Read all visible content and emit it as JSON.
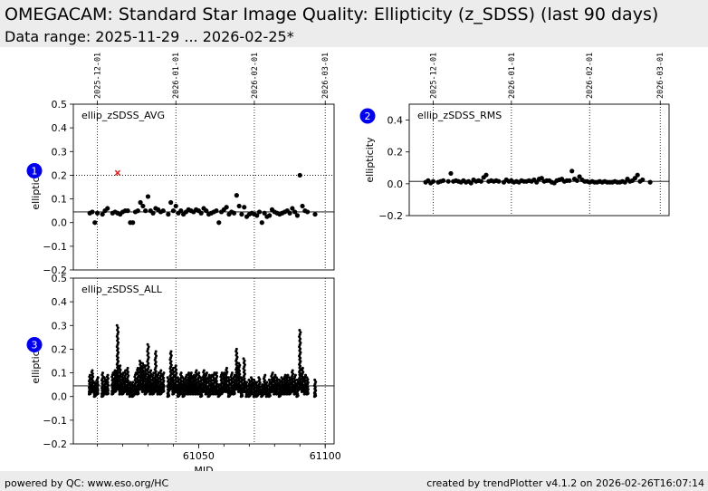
{
  "header": {
    "title": "OMEGACAM: Standard Star Image Quality: Ellipticity (z_SDSS) (last 90 days)",
    "subtitle": "Data range: 2025-11-29 ... 2026-02-25*"
  },
  "footer": {
    "left": "powered by QC: www.eso.org/HC",
    "right": "created by trendPlotter v4.1.2 on 2026-02-26T16:07:14"
  },
  "colors": {
    "marker": "#000000",
    "outlier": "#dd2222",
    "badge": "#0000ee",
    "header_bg": "#ececec"
  },
  "chart_data": [
    {
      "id": "avg",
      "type": "scatter",
      "badge": "1",
      "label": "ellip_zSDSS_AVG",
      "ylabel": "ellipticity",
      "xlim": [
        61000.5,
        61103.5
      ],
      "ylim": [
        -0.2,
        0.5
      ],
      "yticks": [
        -0.2,
        -0.1,
        0.0,
        0.1,
        0.2,
        0.3,
        0.4,
        0.5
      ],
      "yticklabels": [
        "−0.2",
        "−0.1",
        "0.0",
        "0.1",
        "0.2",
        "0.3",
        "0.4",
        "0.5"
      ],
      "date_ticks": [
        {
          "mjd": 61010,
          "label": "2025-12-01"
        },
        {
          "mjd": 61041,
          "label": "2026-01-01"
        },
        {
          "mjd": 61072,
          "label": "2026-02-01"
        },
        {
          "mjd": 61100,
          "label": "2026-03-01"
        }
      ],
      "reference_lines": [
        0.045
      ],
      "threshold": 0.2,
      "outliers": [
        {
          "x": 61018,
          "y": 0.21
        }
      ],
      "x": [
        61007,
        61008,
        61009,
        61010,
        61012,
        61013,
        61014,
        61016,
        61017,
        61018,
        61019,
        61020,
        61021,
        61022,
        61023,
        61024,
        61025,
        61026,
        61027,
        61028,
        61029,
        61030,
        61031,
        61032,
        61033,
        61034,
        61035,
        61036,
        61038,
        61039,
        61040,
        61041,
        61042,
        61043,
        61044,
        61045,
        61046,
        61047,
        61048,
        61049,
        61050,
        61051,
        61052,
        61053,
        61054,
        61055,
        61056,
        61057,
        61058,
        61059,
        61060,
        61061,
        61062,
        61063,
        61064,
        61065,
        61066,
        61067,
        61068,
        61069,
        61070,
        61071,
        61072,
        61073,
        61074,
        61075,
        61076,
        61077,
        61078,
        61079,
        61080,
        61081,
        61082,
        61083,
        61084,
        61085,
        61086,
        61087,
        61088,
        61089,
        61090,
        61091,
        61092,
        61093,
        61096
      ],
      "values": [
        0.04,
        0.045,
        0.0,
        0.04,
        0.035,
        0.05,
        0.06,
        0.04,
        0.045,
        0.04,
        0.035,
        0.045,
        0.05,
        0.05,
        0.0,
        0.0,
        0.045,
        0.05,
        0.085,
        0.07,
        0.05,
        0.11,
        0.05,
        0.04,
        0.06,
        0.055,
        0.045,
        0.05,
        0.035,
        0.085,
        0.05,
        0.07,
        0.04,
        0.05,
        0.035,
        0.045,
        0.055,
        0.05,
        0.045,
        0.055,
        0.05,
        0.04,
        0.06,
        0.05,
        0.035,
        0.04,
        0.045,
        0.05,
        0.0,
        0.045,
        0.055,
        0.065,
        0.035,
        0.045,
        0.04,
        0.115,
        0.07,
        0.035,
        0.065,
        0.025,
        0.035,
        0.04,
        0.035,
        0.03,
        0.045,
        0.0,
        0.04,
        0.025,
        0.03,
        0.055,
        0.045,
        0.04,
        0.035,
        0.04,
        0.045,
        0.05,
        0.04,
        0.06,
        0.045,
        0.03,
        0.2,
        0.07,
        0.05,
        0.045,
        0.035
      ]
    },
    {
      "id": "rms",
      "type": "scatter",
      "badge": "2",
      "label": "ellip_zSDSS_RMS",
      "ylabel": "ellipticity",
      "xlim": [
        61000.5,
        61103.5
      ],
      "ylim": [
        -0.2,
        0.5
      ],
      "yticks": [
        -0.2,
        0.0,
        0.2,
        0.4
      ],
      "yticklabels": [
        "−0.2",
        "0.0",
        "0.2",
        "0.4"
      ],
      "date_ticks": [
        {
          "mjd": 61010,
          "label": "2025-12-01"
        },
        {
          "mjd": 61041,
          "label": "2026-01-01"
        },
        {
          "mjd": 61072,
          "label": "2026-02-01"
        },
        {
          "mjd": 61100,
          "label": "2026-03-01"
        }
      ],
      "reference_lines": [
        0.015
      ],
      "x": [
        61007,
        61008,
        61009,
        61010,
        61012,
        61013,
        61014,
        61016,
        61017,
        61018,
        61019,
        61020,
        61021,
        61022,
        61023,
        61024,
        61025,
        61026,
        61027,
        61028,
        61029,
        61030,
        61031,
        61032,
        61033,
        61034,
        61035,
        61036,
        61038,
        61039,
        61040,
        61041,
        61042,
        61043,
        61044,
        61045,
        61046,
        61047,
        61048,
        61049,
        61050,
        61051,
        61052,
        61053,
        61054,
        61055,
        61056,
        61057,
        61058,
        61059,
        61060,
        61061,
        61062,
        61063,
        61064,
        61065,
        61066,
        61067,
        61068,
        61069,
        61070,
        61071,
        61072,
        61073,
        61074,
        61075,
        61076,
        61077,
        61078,
        61079,
        61080,
        61081,
        61082,
        61083,
        61084,
        61085,
        61086,
        61087,
        61088,
        61089,
        61090,
        61091,
        61092,
        61093,
        61096
      ],
      "values": [
        0.01,
        0.02,
        0.005,
        0.015,
        0.01,
        0.015,
        0.02,
        0.015,
        0.065,
        0.015,
        0.02,
        0.015,
        0.01,
        0.02,
        0.01,
        0.015,
        0.005,
        0.025,
        0.015,
        0.02,
        0.015,
        0.04,
        0.055,
        0.015,
        0.02,
        0.015,
        0.02,
        0.015,
        0.01,
        0.025,
        0.015,
        0.02,
        0.01,
        0.015,
        0.01,
        0.02,
        0.015,
        0.015,
        0.02,
        0.015,
        0.025,
        0.01,
        0.03,
        0.035,
        0.015,
        0.02,
        0.02,
        0.01,
        0.005,
        0.02,
        0.025,
        0.03,
        0.015,
        0.02,
        0.02,
        0.08,
        0.03,
        0.02,
        0.045,
        0.025,
        0.015,
        0.015,
        0.01,
        0.015,
        0.01,
        0.01,
        0.015,
        0.01,
        0.015,
        0.01,
        0.01,
        0.01,
        0.015,
        0.01,
        0.01,
        0.015,
        0.01,
        0.03,
        0.015,
        0.02,
        0.035,
        0.055,
        0.015,
        0.025,
        0.01
      ]
    },
    {
      "id": "all",
      "type": "scatter",
      "badge": "3",
      "label": "ellip_zSDSS_ALL",
      "ylabel": "ellipticity",
      "xlabel": "MJD",
      "xlim": [
        61000.5,
        61103.5
      ],
      "ylim": [
        -0.2,
        0.5
      ],
      "yticks": [
        -0.2,
        -0.1,
        0.0,
        0.1,
        0.2,
        0.3,
        0.4,
        0.5
      ],
      "yticklabels": [
        "−0.2",
        "−0.1",
        "0.0",
        "0.1",
        "0.2",
        "0.3",
        "0.4",
        "0.5"
      ],
      "xticks": [
        61050,
        61100
      ],
      "xticklabels": [
        "61050",
        "61100"
      ],
      "date_gridlines": [
        61010,
        61041,
        61072,
        61100
      ],
      "reference_lines": [
        0.045
      ],
      "columns": [
        {
          "x": 61007,
          "min": 0.01,
          "max": 0.09,
          "count": 20
        },
        {
          "x": 61008,
          "min": 0.02,
          "max": 0.11,
          "count": 22
        },
        {
          "x": 61009,
          "min": 0.0,
          "max": 0.06,
          "count": 14
        },
        {
          "x": 61010,
          "min": 0.01,
          "max": 0.08,
          "count": 18
        },
        {
          "x": 61012,
          "min": 0.0,
          "max": 0.1,
          "count": 20
        },
        {
          "x": 61013,
          "min": 0.01,
          "max": 0.08,
          "count": 16
        },
        {
          "x": 61014,
          "min": 0.01,
          "max": 0.09,
          "count": 20
        },
        {
          "x": 61016,
          "min": 0.01,
          "max": 0.1,
          "count": 18
        },
        {
          "x": 61017,
          "min": 0.02,
          "max": 0.11,
          "count": 22
        },
        {
          "x": 61018,
          "min": 0.03,
          "max": 0.3,
          "count": 46
        },
        {
          "x": 61019,
          "min": 0.01,
          "max": 0.13,
          "count": 22
        },
        {
          "x": 61020,
          "min": 0.01,
          "max": 0.1,
          "count": 18
        },
        {
          "x": 61021,
          "min": 0.02,
          "max": 0.11,
          "count": 20
        },
        {
          "x": 61022,
          "min": 0.01,
          "max": 0.12,
          "count": 22
        },
        {
          "x": 61023,
          "min": 0.0,
          "max": 0.06,
          "count": 12
        },
        {
          "x": 61024,
          "min": 0.0,
          "max": 0.06,
          "count": 12
        },
        {
          "x": 61025,
          "min": 0.01,
          "max": 0.1,
          "count": 18
        },
        {
          "x": 61026,
          "min": 0.01,
          "max": 0.12,
          "count": 22
        },
        {
          "x": 61027,
          "min": 0.03,
          "max": 0.15,
          "count": 26
        },
        {
          "x": 61028,
          "min": 0.02,
          "max": 0.14,
          "count": 24
        },
        {
          "x": 61029,
          "min": 0.01,
          "max": 0.13,
          "count": 22
        },
        {
          "x": 61030,
          "min": 0.02,
          "max": 0.22,
          "count": 34
        },
        {
          "x": 61031,
          "min": 0.01,
          "max": 0.11,
          "count": 20
        },
        {
          "x": 61032,
          "min": 0.01,
          "max": 0.1,
          "count": 18
        },
        {
          "x": 61033,
          "min": 0.02,
          "max": 0.19,
          "count": 30
        },
        {
          "x": 61034,
          "min": 0.01,
          "max": 0.1,
          "count": 18
        },
        {
          "x": 61035,
          "min": 0.01,
          "max": 0.11,
          "count": 20
        },
        {
          "x": 61036,
          "min": 0.02,
          "max": 0.1,
          "count": 18
        },
        {
          "x": 61038,
          "min": 0.0,
          "max": 0.08,
          "count": 16
        },
        {
          "x": 61039,
          "min": 0.03,
          "max": 0.19,
          "count": 30
        },
        {
          "x": 61040,
          "min": 0.01,
          "max": 0.12,
          "count": 22
        },
        {
          "x": 61041,
          "min": 0.02,
          "max": 0.13,
          "count": 22
        },
        {
          "x": 61042,
          "min": 0.0,
          "max": 0.08,
          "count": 16
        },
        {
          "x": 61043,
          "min": 0.01,
          "max": 0.1,
          "count": 20
        },
        {
          "x": 61044,
          "min": 0.0,
          "max": 0.08,
          "count": 16
        },
        {
          "x": 61045,
          "min": 0.01,
          "max": 0.09,
          "count": 18
        },
        {
          "x": 61046,
          "min": 0.01,
          "max": 0.1,
          "count": 20
        },
        {
          "x": 61047,
          "min": 0.01,
          "max": 0.1,
          "count": 20
        },
        {
          "x": 61048,
          "min": 0.01,
          "max": 0.09,
          "count": 18
        },
        {
          "x": 61049,
          "min": 0.01,
          "max": 0.11,
          "count": 20
        },
        {
          "x": 61050,
          "min": 0.01,
          "max": 0.1,
          "count": 20
        },
        {
          "x": 61051,
          "min": 0.0,
          "max": 0.08,
          "count": 16
        },
        {
          "x": 61052,
          "min": 0.02,
          "max": 0.11,
          "count": 20
        },
        {
          "x": 61053,
          "min": 0.01,
          "max": 0.1,
          "count": 18
        },
        {
          "x": 61054,
          "min": 0.0,
          "max": 0.09,
          "count": 18
        },
        {
          "x": 61055,
          "min": 0.01,
          "max": 0.09,
          "count": 18
        },
        {
          "x": 61056,
          "min": 0.01,
          "max": 0.1,
          "count": 18
        },
        {
          "x": 61057,
          "min": 0.01,
          "max": 0.1,
          "count": 20
        },
        {
          "x": 61058,
          "min": 0.0,
          "max": 0.05,
          "count": 10
        },
        {
          "x": 61059,
          "min": 0.01,
          "max": 0.1,
          "count": 18
        },
        {
          "x": 61060,
          "min": 0.02,
          "max": 0.1,
          "count": 18
        },
        {
          "x": 61061,
          "min": 0.02,
          "max": 0.12,
          "count": 20
        },
        {
          "x": 61062,
          "min": 0.0,
          "max": 0.08,
          "count": 16
        },
        {
          "x": 61063,
          "min": 0.01,
          "max": 0.1,
          "count": 18
        },
        {
          "x": 61064,
          "min": 0.01,
          "max": 0.09,
          "count": 18
        },
        {
          "x": 61065,
          "min": 0.03,
          "max": 0.2,
          "count": 32
        },
        {
          "x": 61066,
          "min": 0.02,
          "max": 0.14,
          "count": 24
        },
        {
          "x": 61067,
          "min": 0.0,
          "max": 0.08,
          "count": 16
        },
        {
          "x": 61068,
          "min": 0.02,
          "max": 0.16,
          "count": 26
        },
        {
          "x": 61069,
          "min": 0.0,
          "max": 0.06,
          "count": 12
        },
        {
          "x": 61070,
          "min": 0.0,
          "max": 0.07,
          "count": 14
        },
        {
          "x": 61071,
          "min": 0.01,
          "max": 0.08,
          "count": 16
        },
        {
          "x": 61072,
          "min": 0.0,
          "max": 0.07,
          "count": 14
        },
        {
          "x": 61073,
          "min": 0.0,
          "max": 0.06,
          "count": 12
        },
        {
          "x": 61074,
          "min": 0.01,
          "max": 0.08,
          "count": 16
        },
        {
          "x": 61075,
          "min": 0.0,
          "max": 0.05,
          "count": 10
        },
        {
          "x": 61076,
          "min": 0.01,
          "max": 0.09,
          "count": 18
        },
        {
          "x": 61077,
          "min": 0.0,
          "max": 0.06,
          "count": 12
        },
        {
          "x": 61078,
          "min": 0.0,
          "max": 0.07,
          "count": 14
        },
        {
          "x": 61079,
          "min": 0.02,
          "max": 0.1,
          "count": 18
        },
        {
          "x": 61080,
          "min": 0.01,
          "max": 0.09,
          "count": 18
        },
        {
          "x": 61081,
          "min": 0.01,
          "max": 0.08,
          "count": 16
        },
        {
          "x": 61082,
          "min": 0.0,
          "max": 0.07,
          "count": 14
        },
        {
          "x": 61083,
          "min": 0.01,
          "max": 0.08,
          "count": 16
        },
        {
          "x": 61084,
          "min": 0.01,
          "max": 0.09,
          "count": 18
        },
        {
          "x": 61085,
          "min": 0.01,
          "max": 0.09,
          "count": 18
        },
        {
          "x": 61086,
          "min": 0.01,
          "max": 0.08,
          "count": 16
        },
        {
          "x": 61087,
          "min": 0.02,
          "max": 0.11,
          "count": 20
        },
        {
          "x": 61088,
          "min": 0.01,
          "max": 0.09,
          "count": 18
        },
        {
          "x": 61089,
          "min": 0.0,
          "max": 0.07,
          "count": 14
        },
        {
          "x": 61090,
          "min": 0.03,
          "max": 0.28,
          "count": 44
        },
        {
          "x": 61091,
          "min": 0.02,
          "max": 0.12,
          "count": 20
        },
        {
          "x": 61092,
          "min": 0.01,
          "max": 0.09,
          "count": 18
        },
        {
          "x": 61093,
          "min": 0.01,
          "max": 0.08,
          "count": 16
        },
        {
          "x": 61096,
          "min": 0.0,
          "max": 0.07,
          "count": 14
        }
      ]
    }
  ]
}
